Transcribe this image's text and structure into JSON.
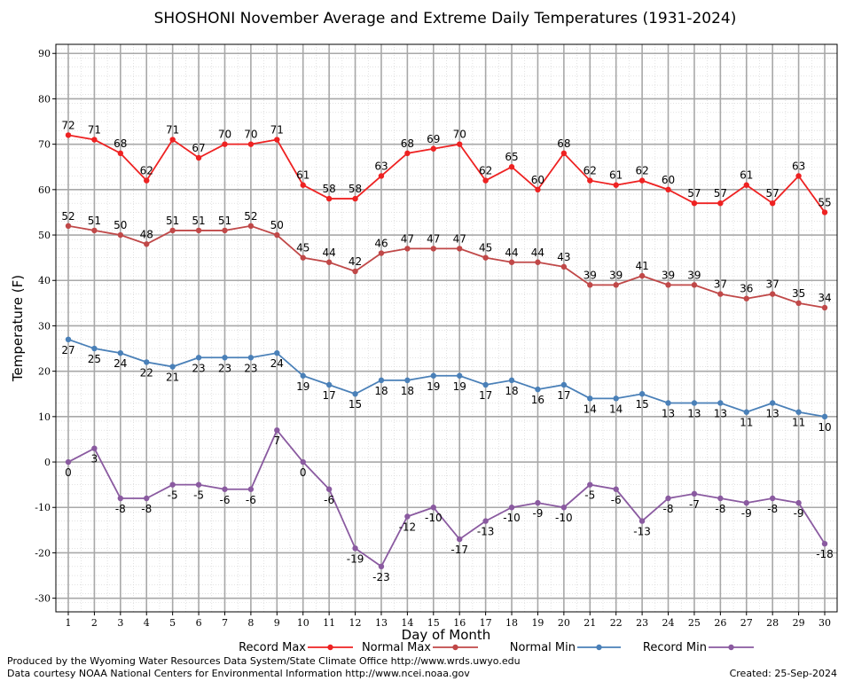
{
  "chart_data": {
    "type": "line",
    "title": "SHOSHONI November Average and Extreme Daily Temperatures (1931-2024)",
    "xlabel": "Day of Month",
    "ylabel": "Temperature (F)",
    "xlim": [
      1,
      30
    ],
    "ylim": [
      -33,
      92
    ],
    "y_ticks": [
      -30,
      -20,
      -10,
      0,
      10,
      20,
      30,
      40,
      50,
      60,
      70,
      80,
      90
    ],
    "x": [
      1,
      2,
      3,
      4,
      5,
      6,
      7,
      8,
      9,
      10,
      11,
      12,
      13,
      14,
      15,
      16,
      17,
      18,
      19,
      20,
      21,
      22,
      23,
      24,
      25,
      26,
      27,
      28,
      29,
      30
    ],
    "grid": true,
    "legend_position": "bottom",
    "series": [
      {
        "name": "Record Max",
        "color": "#ee2222",
        "label_position": "above",
        "values": [
          72,
          71,
          68,
          62,
          71,
          67,
          70,
          70,
          71,
          61,
          58,
          58,
          63,
          68,
          69,
          70,
          62,
          65,
          60,
          68,
          62,
          61,
          62,
          60,
          57,
          57,
          61,
          57,
          63,
          55
        ]
      },
      {
        "name": "Normal Max",
        "color": "#c04848",
        "label_position": "above",
        "values": [
          52,
          51,
          50,
          48,
          51,
          51,
          51,
          52,
          50,
          45,
          44,
          42,
          46,
          47,
          47,
          47,
          45,
          44,
          44,
          43,
          39,
          39,
          41,
          39,
          39,
          37,
          36,
          37,
          35,
          34
        ]
      },
      {
        "name": "Normal Min",
        "color": "#4a80b8",
        "label_position": "below",
        "values": [
          27,
          25,
          24,
          22,
          21,
          23,
          23,
          23,
          24,
          19,
          17,
          15,
          18,
          18,
          19,
          19,
          17,
          18,
          16,
          17,
          14,
          14,
          15,
          13,
          13,
          13,
          11,
          13,
          11,
          10
        ]
      },
      {
        "name": "Record Min",
        "color": "#8a5aa0",
        "label_position": "below",
        "values": [
          0,
          3,
          -8,
          -8,
          -5,
          -5,
          -6,
          -6,
          7,
          0,
          -6,
          -19,
          -23,
          -12,
          -10,
          -17,
          -13,
          -10,
          -9,
          -10,
          -5,
          -6,
          -13,
          -8,
          -7,
          -8,
          -9,
          -8,
          -9,
          -18
        ]
      }
    ]
  },
  "footer": {
    "produced_by": "Produced by the Wyoming Water Resources Data System/State Climate Office http://www.wrds.uwyo.edu",
    "courtesy": "Data courtesy NOAA National Centers for Environmental Information http://www.ncei.noaa.gov",
    "created": "Created:  25-Sep-2024"
  }
}
